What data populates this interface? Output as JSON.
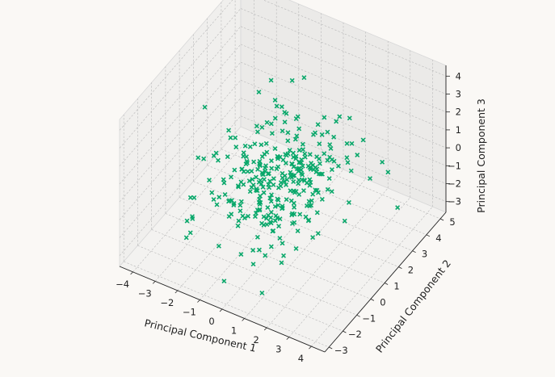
{
  "chart_data": {
    "type": "scatter",
    "projection": "3d",
    "marker": "x",
    "color": "#0aa86b",
    "pane_color": "#ececec",
    "background": "#faf8f5",
    "grid": true,
    "xlabel": "Principal Component 1",
    "ylabel": "Principal Component 2",
    "zlabel": "Principal Component 3",
    "xlim": [
      -4.6,
      4.6
    ],
    "ylim": [
      -3.3,
      5.4
    ],
    "zlim": [
      -3.6,
      4.6
    ],
    "xticks": [
      -4,
      -3,
      -2,
      -1,
      0,
      1,
      2,
      3,
      4
    ],
    "yticks": [
      -3,
      -2,
      -1,
      0,
      1,
      2,
      3,
      4,
      5
    ],
    "zticks": [
      -3,
      -2,
      -1,
      0,
      1,
      2,
      3,
      4
    ],
    "xtick_labels": [
      "−4",
      "−3",
      "−2",
      "−1",
      "0",
      "1",
      "2",
      "3",
      "4"
    ],
    "ytick_labels": [
      "−3",
      "−2",
      "−1",
      "0",
      "1",
      "2",
      "3",
      "4",
      "5"
    ],
    "ztick_labels": [
      "−3",
      "−2",
      "−1",
      "0",
      "1",
      "2",
      "3",
      "4"
    ],
    "n_points": 330,
    "x_spread": 1.25,
    "y_spread": 1.5,
    "z_spread": 1.15,
    "y_center": 0.8,
    "seed": 7
  }
}
